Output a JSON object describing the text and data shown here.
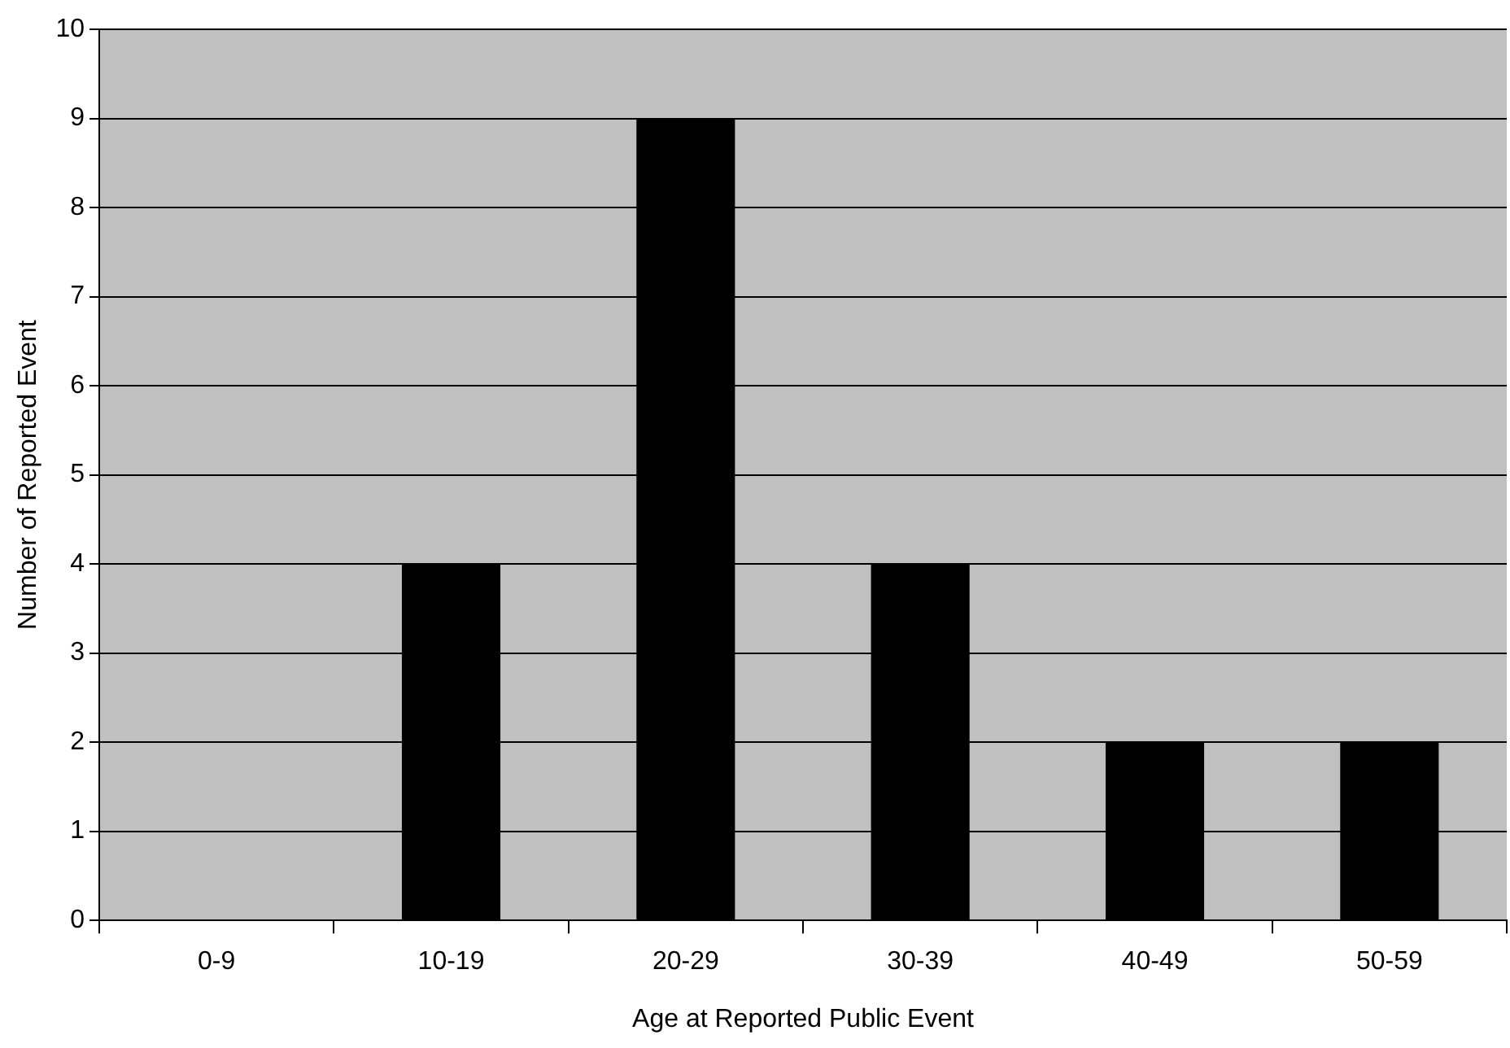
{
  "chart_data": {
    "type": "bar",
    "categories": [
      "0-9",
      "10-19",
      "20-29",
      "30-39",
      "40-49",
      "50-59"
    ],
    "values": [
      0,
      4,
      9,
      4,
      2,
      2
    ],
    "color": "#000000",
    "ylim": [
      0,
      10
    ],
    "yticks": [
      0,
      1,
      2,
      3,
      4,
      5,
      6,
      7,
      8,
      9,
      10
    ],
    "grid": "y",
    "legend": false,
    "xlabel": "Age at Reported Public Event",
    "ylabel": "Number of Reported Event"
  }
}
